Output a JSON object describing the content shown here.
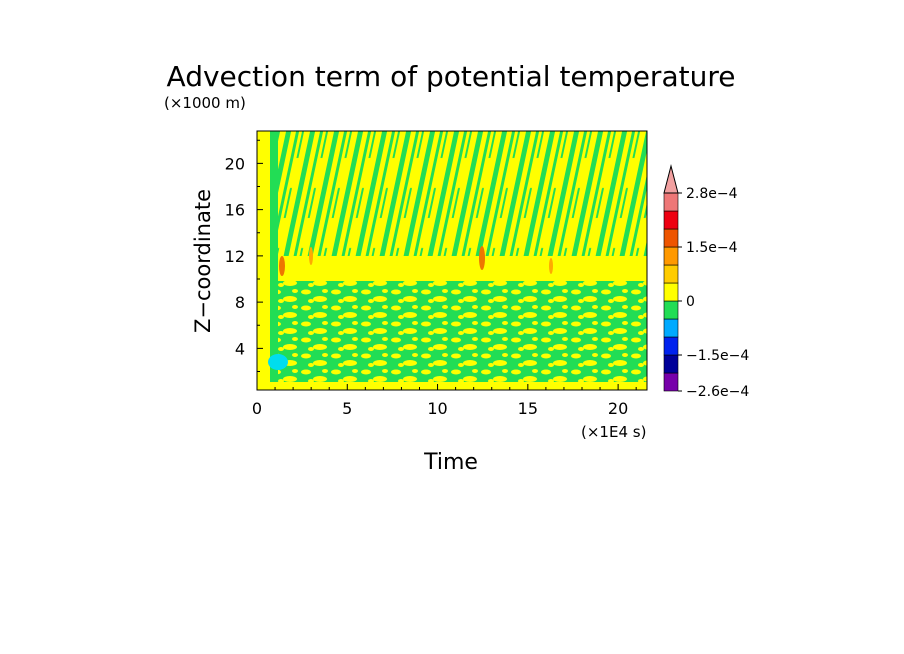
{
  "chart_data": {
    "type": "heatmap",
    "title": "Advection term of potential temperature",
    "ylabel": "Z−coordinate",
    "xlabel": "Time",
    "y_unit": "(×1000 m)",
    "x_unit": "(×1E4 s)",
    "xlim": [
      0,
      21.6
    ],
    "ylim": [
      0.4,
      22.8
    ],
    "x_ticks": [
      0,
      5,
      10,
      15,
      20
    ],
    "x_tick_labels": [
      "0",
      "5",
      "10",
      "15",
      "20"
    ],
    "y_ticks": [
      4,
      8,
      12,
      16,
      20
    ],
    "y_tick_labels": [
      "4",
      "8",
      "12",
      "16",
      "20"
    ],
    "colorbar": {
      "labels": [
        {
          "text": "2.8e−4",
          "value": 0.00028
        },
        {
          "text": "1.5e−4",
          "value": 0.00015
        },
        {
          "text": "0",
          "value": 0
        },
        {
          "text": "−1.5e−4",
          "value": -0.00015
        },
        {
          "text": "−2.6e−4",
          "value": -0.00026
        }
      ],
      "levels": [
        -0.00026,
        -0.0002,
        -0.00015,
        -0.0001,
        -5e-05,
        0,
        5e-05,
        0.0001,
        0.00015,
        0.0002,
        0.00025,
        0.00028
      ],
      "colors": [
        "#7700aa",
        "#000099",
        "#0022ee",
        "#00aaff",
        "#22dd55",
        "#ffff00",
        "#ffcc00",
        "#ff9900",
        "#ee5500",
        "#ee0011",
        "#ee7777"
      ],
      "overflow_color": "#f2a0a0",
      "extend": "max"
    },
    "dominant_colors": {
      "positive_small": "#ffff00",
      "negative_small": "#22dd55",
      "negative_mid": "#00ddee",
      "positive_mid": "#ee7700"
    },
    "features": [
      {
        "description_value": "diagonal streak band",
        "x_range": [
          1.2,
          21.6
        ],
        "y_range": [
          12,
          22.8
        ]
      },
      {
        "description_value": "warm band",
        "x_range": [
          1,
          21
        ],
        "y_range": [
          10.5,
          11.5
        ]
      }
    ]
  }
}
